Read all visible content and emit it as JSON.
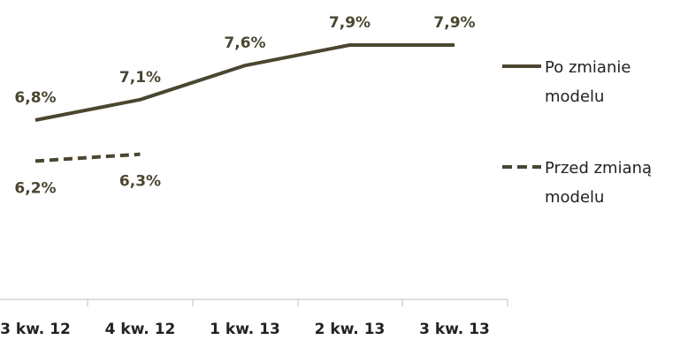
{
  "chart_data": {
    "type": "line",
    "categories": [
      "3 kw. 12",
      "4 kw. 12",
      "1 kw. 13",
      "2 kw. 13",
      "3 kw. 13"
    ],
    "series": [
      {
        "name": "Po zmianie modelu",
        "legend_lines": [
          "Po zmianie",
          "modelu"
        ],
        "values": [
          6.8,
          7.1,
          7.6,
          7.9,
          7.9
        ],
        "labels": [
          "6,8%",
          "7,1%",
          "7,6%",
          "7,9%",
          "7,9%"
        ],
        "line_style": "solid",
        "color": "#4a4630"
      },
      {
        "name": "Przed zmianą modelu",
        "legend_lines": [
          "Przed zmianą",
          "modelu"
        ],
        "values": [
          6.2,
          6.3,
          null,
          null,
          null
        ],
        "labels": [
          "6,2%",
          "6,3%",
          null,
          null,
          null
        ],
        "line_style": "dashed",
        "color": "#4a4630"
      }
    ],
    "xlabel": "",
    "ylabel": "",
    "ylim": [
      5.0,
      8.3
    ],
    "grid": false,
    "legend_position": "right"
  }
}
